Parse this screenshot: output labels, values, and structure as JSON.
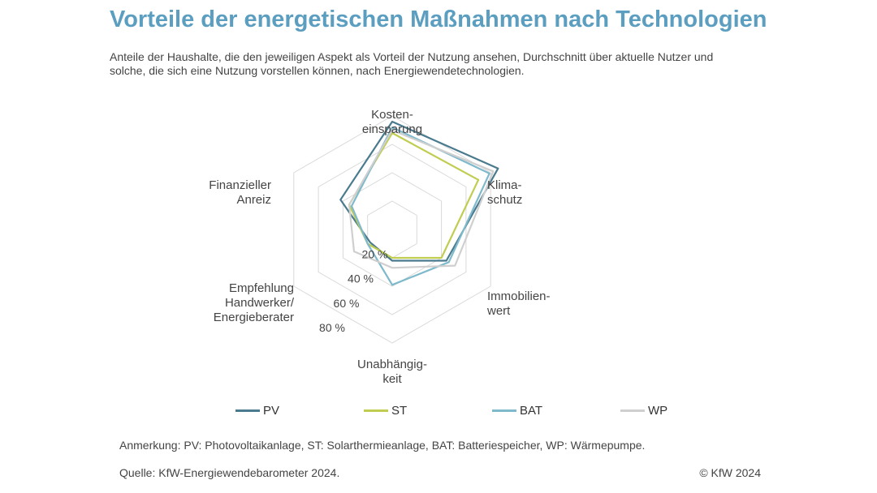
{
  "header": {
    "title": "Vorteile der energetischen Maßnahmen nach Technologien",
    "subtitle": "Anteile der Haushalte, die den jeweiligen Aspekt als Vorteil der Nutzung ansehen, Durchschnitt über aktuelle Nutzer und solche, die sich eine Nutzung vorstellen können, nach Energiewendetechnologien."
  },
  "chart_data": {
    "type": "radar",
    "title": "Vorteile der energetischen Maßnahmen nach Technologien",
    "axes": [
      [
        "Kosten-",
        "einsparung"
      ],
      [
        "Klima-",
        "schutz"
      ],
      [
        "Immobilien-",
        "wert"
      ],
      [
        "Unabhängig-",
        "keit"
      ],
      [
        "Empfehlung",
        "Handwerker/",
        "Energieberater"
      ],
      [
        "Finanzieller",
        "Anreiz"
      ]
    ],
    "rmin": 0,
    "rmax": 80,
    "ticks": [
      20,
      40,
      60,
      80
    ],
    "tick_labels": [
      "20 %",
      "40 %",
      "60 %",
      "80 %"
    ],
    "grid": true,
    "legend_position": "bottom",
    "series": [
      {
        "name": "PV",
        "color": "#4a7a8e",
        "values": [
          76,
          86,
          44,
          22,
          18,
          42
        ]
      },
      {
        "name": "ST",
        "color": "#c0cd50",
        "values": [
          68,
          70,
          40,
          20,
          20,
          35
        ]
      },
      {
        "name": "BAT",
        "color": "#7fb9cc",
        "values": [
          72,
          79,
          46,
          39,
          20,
          33
        ]
      },
      {
        "name": "WP",
        "color": "#cfcfcf",
        "values": [
          70,
          82,
          51,
          27,
          31,
          35
        ]
      }
    ]
  },
  "footer": {
    "note": "Anmerkung: PV: Photovoltaikanlage, ST: Solarthermieanlage, BAT: Batteriespeicher, WP: Wärmepumpe.",
    "source": "Quelle: KfW-Energiewendebarometer 2024.",
    "copyright": "© KfW 2024"
  }
}
